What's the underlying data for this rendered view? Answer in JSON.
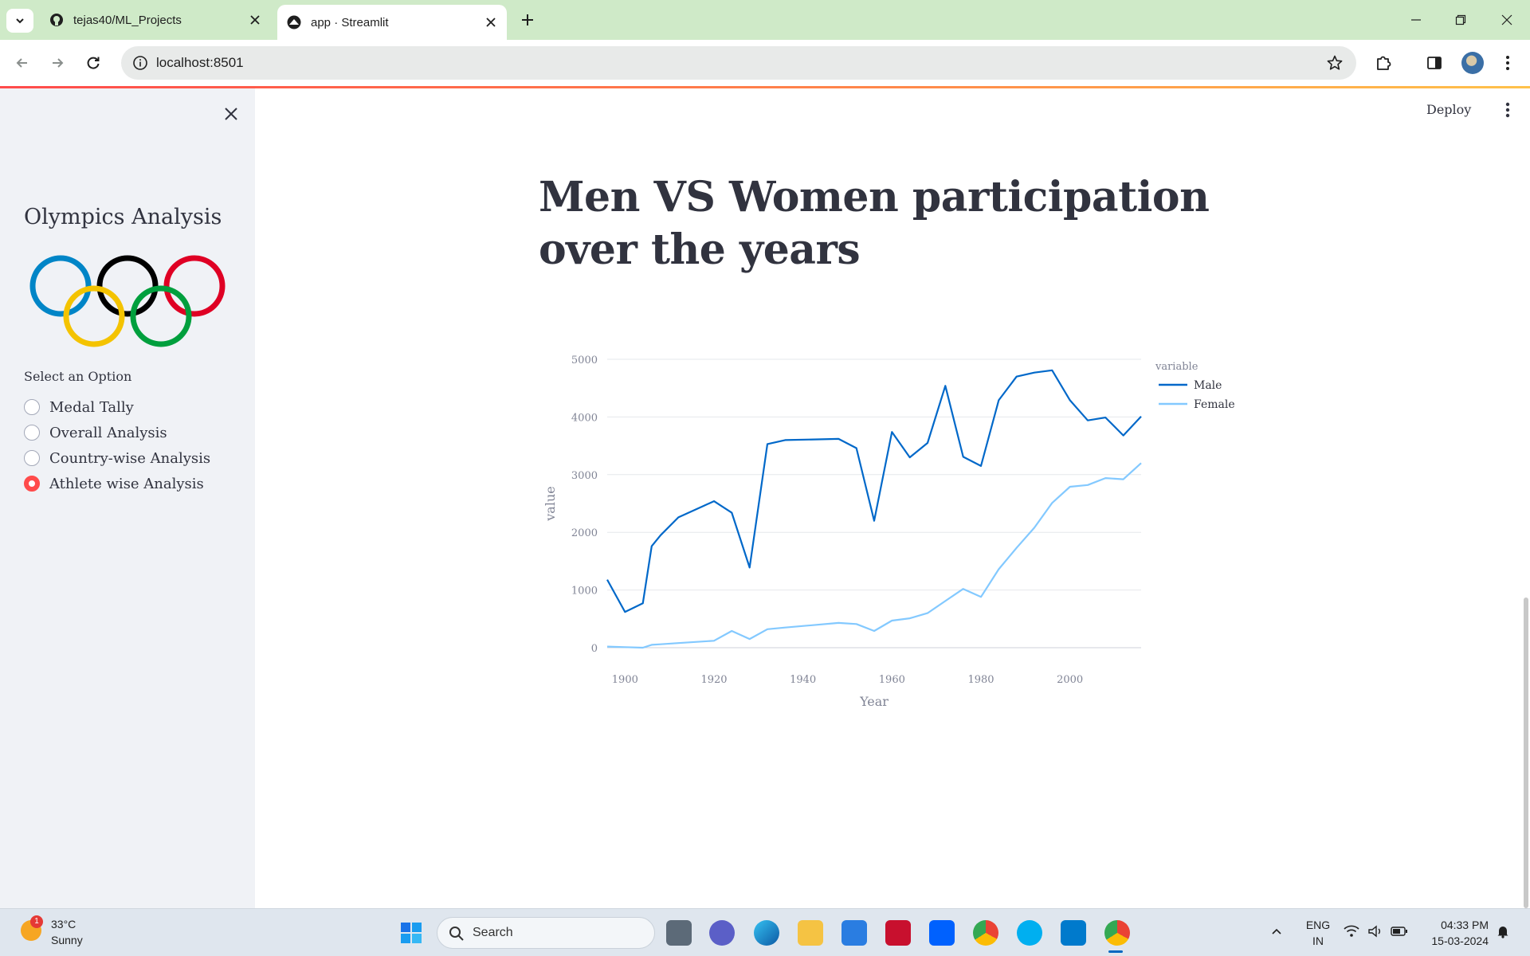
{
  "browser": {
    "tabs": [
      {
        "title": "tejas40/ML_Projects",
        "icon": "github-icon",
        "active": false
      },
      {
        "title": "app · Streamlit",
        "icon": "streamlit-icon",
        "active": true
      }
    ],
    "url": "localhost:8501"
  },
  "app": {
    "header": {
      "deploy_label": "Deploy"
    },
    "sidebar": {
      "title": "Olympics Analysis",
      "select_label": "Select an Option",
      "options": [
        {
          "label": "Medal Tally",
          "selected": false
        },
        {
          "label": "Overall Analysis",
          "selected": false
        },
        {
          "label": "Country-wise Analysis",
          "selected": false
        },
        {
          "label": "Athlete wise Analysis",
          "selected": true
        }
      ],
      "ring_colors": [
        "#0085c7",
        "#000000",
        "#df0024",
        "#f4c300",
        "#009f3d"
      ]
    },
    "main": {
      "title": "Men VS Women participation over the years"
    }
  },
  "chart_data": {
    "type": "line",
    "xlabel": "Year",
    "ylabel": "value",
    "legend_title": "variable",
    "legend_position": "top-right",
    "xlim": [
      1896,
      2016
    ],
    "ylim": [
      0,
      5000
    ],
    "x_ticks": [
      1900,
      1920,
      1940,
      1960,
      1980,
      2000
    ],
    "y_ticks": [
      0,
      1000,
      2000,
      3000,
      4000,
      5000
    ],
    "grid": true,
    "series": [
      {
        "name": "Male",
        "color": "#0068c9",
        "points": [
          [
            1896,
            1180
          ],
          [
            1900,
            620
          ],
          [
            1904,
            770
          ],
          [
            1906,
            1760
          ],
          [
            1908,
            1950
          ],
          [
            1912,
            2260
          ],
          [
            1920,
            2540
          ],
          [
            1924,
            2340
          ],
          [
            1928,
            1390
          ],
          [
            1932,
            3530
          ],
          [
            1936,
            3600
          ],
          [
            1948,
            3620
          ],
          [
            1952,
            3460
          ],
          [
            1956,
            2200
          ],
          [
            1960,
            3740
          ],
          [
            1964,
            3300
          ],
          [
            1968,
            3550
          ],
          [
            1972,
            4540
          ],
          [
            1976,
            3310
          ],
          [
            1980,
            3150
          ],
          [
            1984,
            4290
          ],
          [
            1988,
            4700
          ],
          [
            1992,
            4770
          ],
          [
            1996,
            4810
          ],
          [
            2000,
            4290
          ],
          [
            2004,
            3940
          ],
          [
            2008,
            3990
          ],
          [
            2012,
            3680
          ],
          [
            2016,
            4010
          ]
        ]
      },
      {
        "name": "Female",
        "color": "#83c9ff",
        "points": [
          [
            1896,
            20
          ],
          [
            1900,
            10
          ],
          [
            1904,
            0
          ],
          [
            1906,
            50
          ],
          [
            1908,
            60
          ],
          [
            1912,
            80
          ],
          [
            1920,
            120
          ],
          [
            1924,
            290
          ],
          [
            1928,
            150
          ],
          [
            1932,
            320
          ],
          [
            1936,
            350
          ],
          [
            1948,
            430
          ],
          [
            1952,
            410
          ],
          [
            1956,
            290
          ],
          [
            1960,
            470
          ],
          [
            1964,
            510
          ],
          [
            1968,
            600
          ],
          [
            1972,
            810
          ],
          [
            1976,
            1020
          ],
          [
            1980,
            880
          ],
          [
            1984,
            1360
          ],
          [
            1988,
            1730
          ],
          [
            1992,
            2080
          ],
          [
            1996,
            2510
          ],
          [
            2000,
            2790
          ],
          [
            2004,
            2820
          ],
          [
            2008,
            2940
          ],
          [
            2012,
            2920
          ],
          [
            2016,
            3200
          ]
        ]
      }
    ]
  },
  "taskbar": {
    "weather": {
      "temp": "33°C",
      "condition": "Sunny",
      "badge": "1"
    },
    "search_label": "Search",
    "lang_top": "ENG",
    "lang_bottom": "IN",
    "time": "04:33 PM",
    "date": "15-03-2024"
  }
}
